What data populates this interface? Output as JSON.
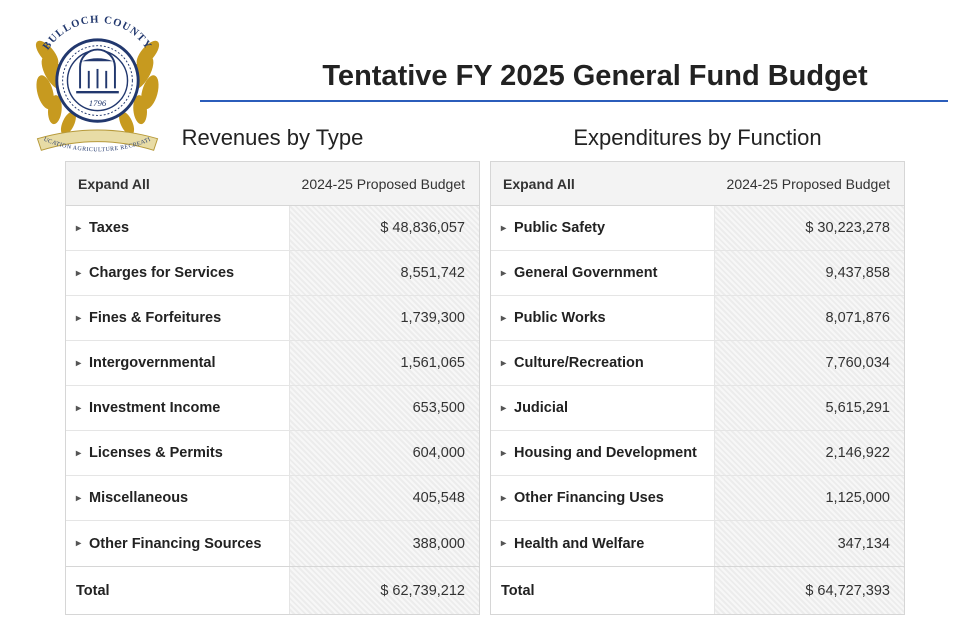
{
  "header": {
    "title": "Tentative FY 2025 General Fund Budget",
    "seal": {
      "top_text": "BULLOCH COUNTY",
      "bottom_text": "EDUCATION  AGRICULTURE  RECREATION",
      "year": "1796",
      "inner_word": "Constitution",
      "colors": {
        "navy": "#22386e",
        "gold": "#c79a1f",
        "ribbon": "#e8dca6",
        "ribbon_edge": "#b79a3b"
      }
    },
    "rule_color": "#2b5dbb"
  },
  "column_header": "2024-25 Proposed Budget",
  "expand_label": "Expand All",
  "total_label": "Total",
  "revenues": {
    "title": "Revenues by Type",
    "rows": [
      {
        "label": "Taxes",
        "value": "$ 48,836,057"
      },
      {
        "label": "Charges for Services",
        "value": "8,551,742"
      },
      {
        "label": "Fines & Forfeitures",
        "value": "1,739,300"
      },
      {
        "label": "Intergovernmental",
        "value": "1,561,065"
      },
      {
        "label": "Investment Income",
        "value": "653,500"
      },
      {
        "label": "Licenses & Permits",
        "value": "604,000"
      },
      {
        "label": "Miscellaneous",
        "value": "405,548"
      },
      {
        "label": "Other Financing Sources",
        "value": "388,000"
      }
    ],
    "total": "$ 62,739,212"
  },
  "expenditures": {
    "title": "Expenditures by Function",
    "rows": [
      {
        "label": "Public Safety",
        "value": "$ 30,223,278"
      },
      {
        "label": "General Government",
        "value": "9,437,858"
      },
      {
        "label": "Public Works",
        "value": "8,071,876"
      },
      {
        "label": "Culture/Recreation",
        "value": "7,760,034"
      },
      {
        "label": "Judicial",
        "value": "5,615,291"
      },
      {
        "label": "Housing and Development",
        "value": "2,146,922"
      },
      {
        "label": "Other Financing Uses",
        "value": "1,125,000"
      },
      {
        "label": "Health and Welfare",
        "value": "347,134"
      }
    ],
    "total": "$ 64,727,393"
  },
  "style": {
    "background": "#ffffff",
    "row_border": "#e5e5e5",
    "table_border": "#d6d6d6",
    "header_bg": "#f3f3f3",
    "hatch_a": "#f7f7f7",
    "hatch_b": "#ececec",
    "title_fontsize_pt": 22,
    "panel_title_fontsize_pt": 17,
    "cell_fontsize_pt": 11
  }
}
